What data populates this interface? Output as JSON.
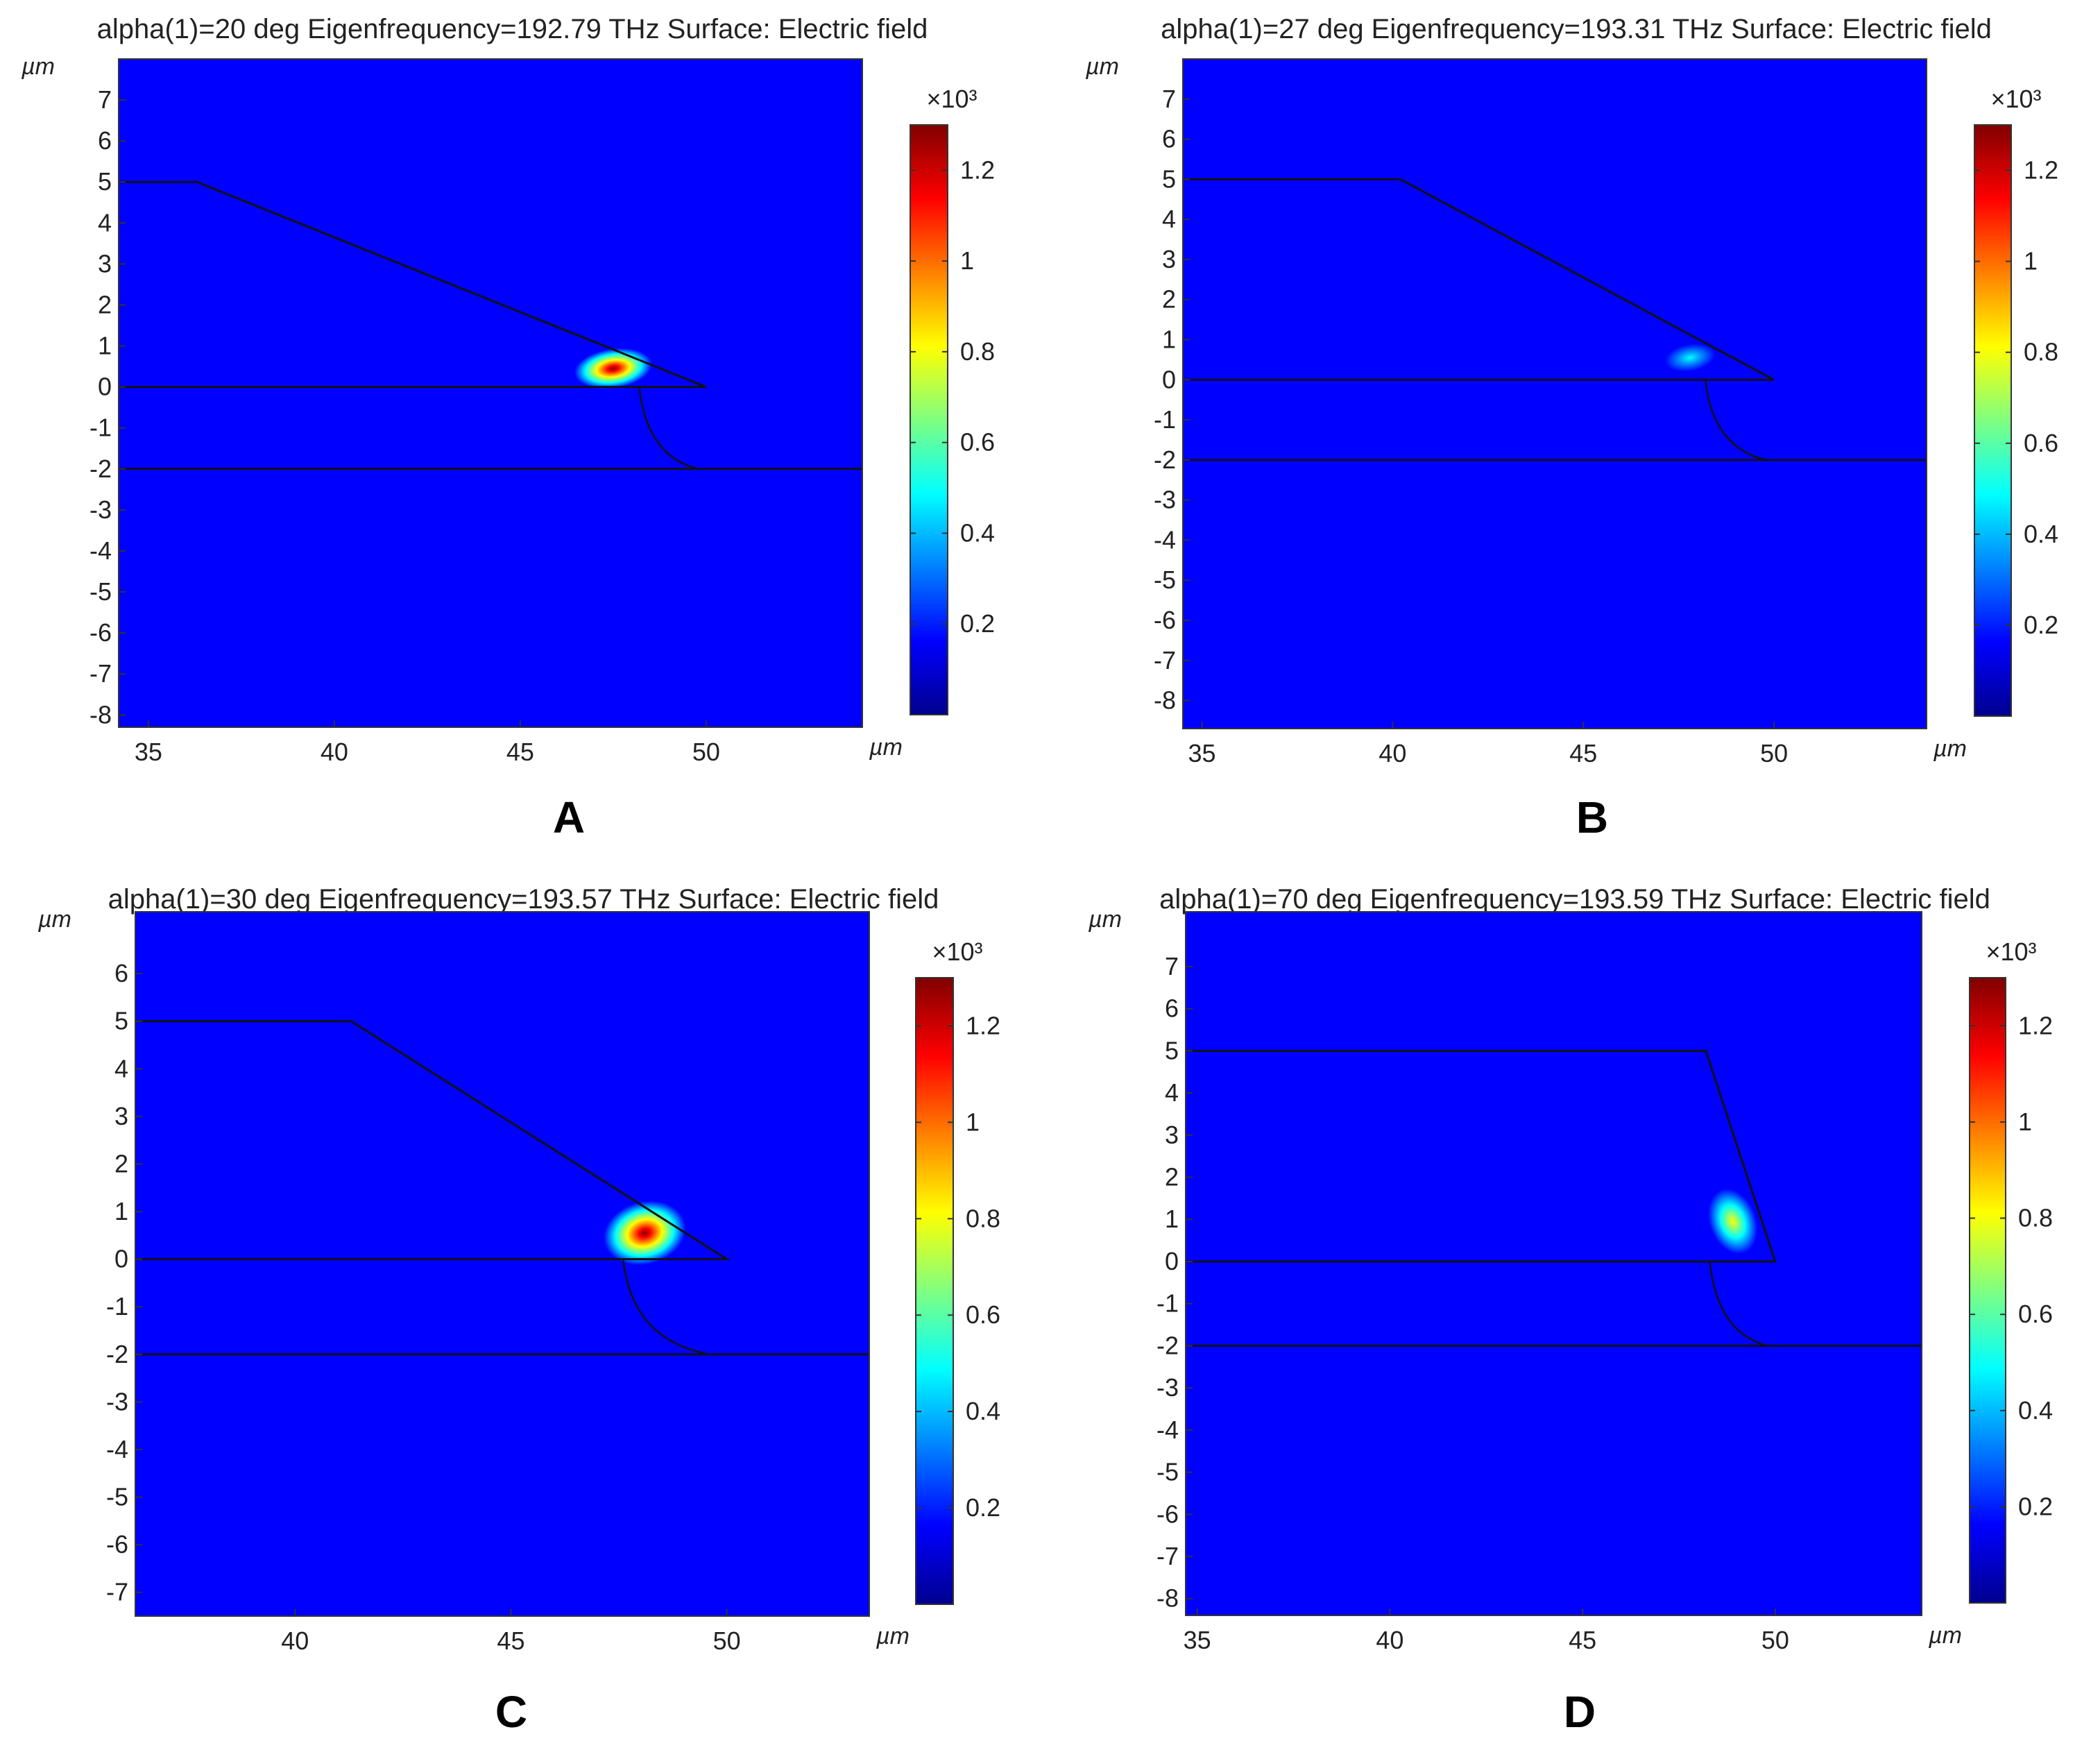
{
  "figure": {
    "domain": "Chart"
  },
  "colors": {
    "background_field": "#0000ff",
    "contour_line": "#111111",
    "colormap": [
      "#00008f",
      "#0000ff",
      "#0080ff",
      "#00ffff",
      "#80ff80",
      "#ffff00",
      "#ff8000",
      "#ff0000",
      "#800000"
    ]
  },
  "chart_data": [
    {
      "type": "heatmap",
      "panel_label": "A",
      "title": "alpha(1)=20 deg Eigenfrequency=192.79 THz  Surface: Electric field",
      "xlabel": "µm",
      "ylabel": "µm",
      "xlim": [
        34.2,
        54.2
      ],
      "ylim": [
        -8.3,
        8.0
      ],
      "xticks": [
        35,
        40,
        45,
        50
      ],
      "yticks": [
        7,
        6,
        5,
        4,
        3,
        2,
        1,
        0,
        -1,
        -2,
        -3,
        -4,
        -5,
        -6,
        -7,
        -8
      ],
      "colorbar": {
        "multiplier": "×10³",
        "ticks": [
          1.2,
          1,
          0.8,
          0.6,
          0.4,
          0.2
        ],
        "range": [
          0,
          1.3
        ]
      },
      "structure": {
        "polygon": [
          [
            34.2,
            5
          ],
          [
            36.3,
            5
          ],
          [
            50,
            0
          ],
          [
            34.2,
            0
          ]
        ],
        "substrate_y": -2,
        "arc": {
          "start": [
            48.2,
            0
          ],
          "control": [
            48.4,
            -1.7
          ],
          "end": [
            49.8,
            -2
          ]
        }
      },
      "hotspot": {
        "x": 47.5,
        "y": 0.45,
        "rx": 1.2,
        "ry": 0.55,
        "peak": 1.3,
        "rotate_deg": -8
      }
    },
    {
      "type": "heatmap",
      "panel_label": "B",
      "title": "alpha(1)=27 deg Eigenfrequency=193.31 THz  Surface: Electric field",
      "xlabel": "µm",
      "ylabel": "µm",
      "xlim": [
        34.5,
        54.0
      ],
      "ylim": [
        -8.7,
        8.0
      ],
      "xticks": [
        35,
        40,
        45,
        50
      ],
      "yticks": [
        7,
        6,
        5,
        4,
        3,
        2,
        1,
        0,
        -1,
        -2,
        -3,
        -4,
        -5,
        -6,
        -7,
        -8
      ],
      "colorbar": {
        "multiplier": "×10³",
        "ticks": [
          1.2,
          1,
          0.8,
          0.6,
          0.4,
          0.2
        ],
        "range": [
          0,
          1.3
        ]
      },
      "structure": {
        "polygon": [
          [
            34.5,
            5
          ],
          [
            40.2,
            5
          ],
          [
            50,
            0
          ],
          [
            34.5,
            0
          ]
        ],
        "substrate_y": -2,
        "arc": {
          "start": [
            48.2,
            0
          ],
          "control": [
            48.4,
            -1.7
          ],
          "end": [
            49.8,
            -2
          ]
        }
      },
      "hotspot": {
        "x": 47.8,
        "y": 0.55,
        "rx": 1.0,
        "ry": 0.5,
        "peak": 0.45,
        "rotate_deg": -10
      }
    },
    {
      "type": "heatmap",
      "panel_label": "C",
      "title": "alpha(1)=30 deg Eigenfrequency=193.57 THz  Surface: Electric field",
      "xlabel": "µm",
      "ylabel": "µm",
      "xlim": [
        36.3,
        53.3
      ],
      "ylim": [
        -7.5,
        7.3
      ],
      "xticks": [
        40,
        45,
        50
      ],
      "yticks": [
        6,
        5,
        4,
        3,
        2,
        1,
        0,
        -1,
        -2,
        -3,
        -4,
        -5,
        -6,
        -7
      ],
      "colorbar": {
        "multiplier": "×10³",
        "ticks": [
          1.2,
          1,
          0.8,
          0.6,
          0.4,
          0.2
        ],
        "range": [
          0,
          1.3
        ]
      },
      "structure": {
        "polygon": [
          [
            36.3,
            5
          ],
          [
            41.3,
            5
          ],
          [
            50,
            0
          ],
          [
            36.3,
            0
          ]
        ],
        "substrate_y": -2,
        "arc": {
          "start": [
            47.6,
            0
          ],
          "control": [
            47.8,
            -1.7
          ],
          "end": [
            49.6,
            -2
          ]
        }
      },
      "hotspot": {
        "x": 48.1,
        "y": 0.55,
        "rx": 1.1,
        "ry": 0.75,
        "peak": 1.3,
        "rotate_deg": -15
      }
    },
    {
      "type": "heatmap",
      "panel_label": "D",
      "title": "alpha(1)=70 deg Eigenfrequency=193.59 THz  Surface: Electric field",
      "xlabel": "µm",
      "ylabel": "µm",
      "xlim": [
        34.7,
        53.8
      ],
      "ylim": [
        -8.4,
        8.3
      ],
      "xticks": [
        35,
        40,
        45,
        50
      ],
      "yticks": [
        7,
        6,
        5,
        4,
        3,
        2,
        1,
        0,
        -1,
        -2,
        -3,
        -4,
        -5,
        -6,
        -7,
        -8
      ],
      "colorbar": {
        "multiplier": "×10³",
        "ticks": [
          1.2,
          1,
          0.8,
          0.6,
          0.4,
          0.2
        ],
        "range": [
          0,
          1.3
        ]
      },
      "structure": {
        "polygon": [
          [
            34.7,
            5
          ],
          [
            48.2,
            5
          ],
          [
            50,
            0
          ],
          [
            34.7,
            0
          ]
        ],
        "substrate_y": -2,
        "arc": {
          "start": [
            48.3,
            0
          ],
          "control": [
            48.5,
            -1.7
          ],
          "end": [
            49.8,
            -2
          ]
        }
      },
      "hotspot": {
        "x": 48.9,
        "y": 0.95,
        "rx": 0.75,
        "ry": 1.0,
        "peak": 0.75,
        "rotate_deg": -20
      }
    }
  ]
}
